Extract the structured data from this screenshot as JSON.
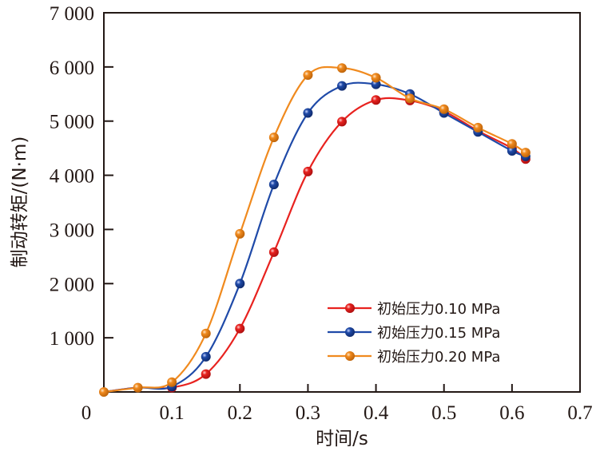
{
  "chart_data": {
    "type": "line",
    "title": "",
    "xlabel": "时间/s",
    "ylabel": "制动转矩/(N·m)",
    "xlim": [
      0,
      0.7
    ],
    "ylim": [
      0,
      7000
    ],
    "xticks": [
      0,
      0.1,
      0.2,
      0.3,
      0.4,
      0.5,
      0.6,
      0.7
    ],
    "xtick_labels": [
      "0",
      "0.1",
      "0.2",
      "0.3",
      "0.4",
      "0.5",
      "0.6",
      "0.7"
    ],
    "yticks": [
      1000,
      2000,
      3000,
      4000,
      5000,
      6000,
      7000
    ],
    "ytick_labels": [
      "1 000",
      "2 000",
      "3 000",
      "4 000",
      "5 000",
      "6 000",
      "7 000"
    ],
    "grid": false,
    "legend_position": "bottom-right",
    "series": [
      {
        "name": "初始压力0.10 MPa",
        "color": "#e8221f",
        "x": [
          0.1,
          0.15,
          0.2,
          0.25,
          0.3,
          0.35,
          0.4,
          0.45,
          0.5,
          0.55,
          0.6,
          0.62
        ],
        "values": [
          80,
          330,
          1170,
          2580,
          4070,
          4990,
          5390,
          5380,
          5180,
          4820,
          4500,
          4300
        ]
      },
      {
        "name": "初始压力0.15 MPa",
        "color": "#1f4aa8",
        "x": [
          0.1,
          0.15,
          0.2,
          0.25,
          0.3,
          0.35,
          0.4,
          0.45,
          0.5,
          0.55,
          0.6,
          0.62
        ],
        "values": [
          100,
          650,
          2000,
          3830,
          5150,
          5650,
          5680,
          5500,
          5150,
          4800,
          4450,
          4350
        ]
      },
      {
        "name": "初始压力0.20 MPa",
        "color": "#f08a1e",
        "x": [
          0.0,
          0.05,
          0.1,
          0.15,
          0.2,
          0.25,
          0.3,
          0.35,
          0.4,
          0.45,
          0.5,
          0.55,
          0.6,
          0.62
        ],
        "values": [
          0,
          80,
          180,
          1080,
          2920,
          4700,
          5850,
          5980,
          5800,
          5420,
          5220,
          4880,
          4580,
          4420
        ]
      }
    ]
  }
}
